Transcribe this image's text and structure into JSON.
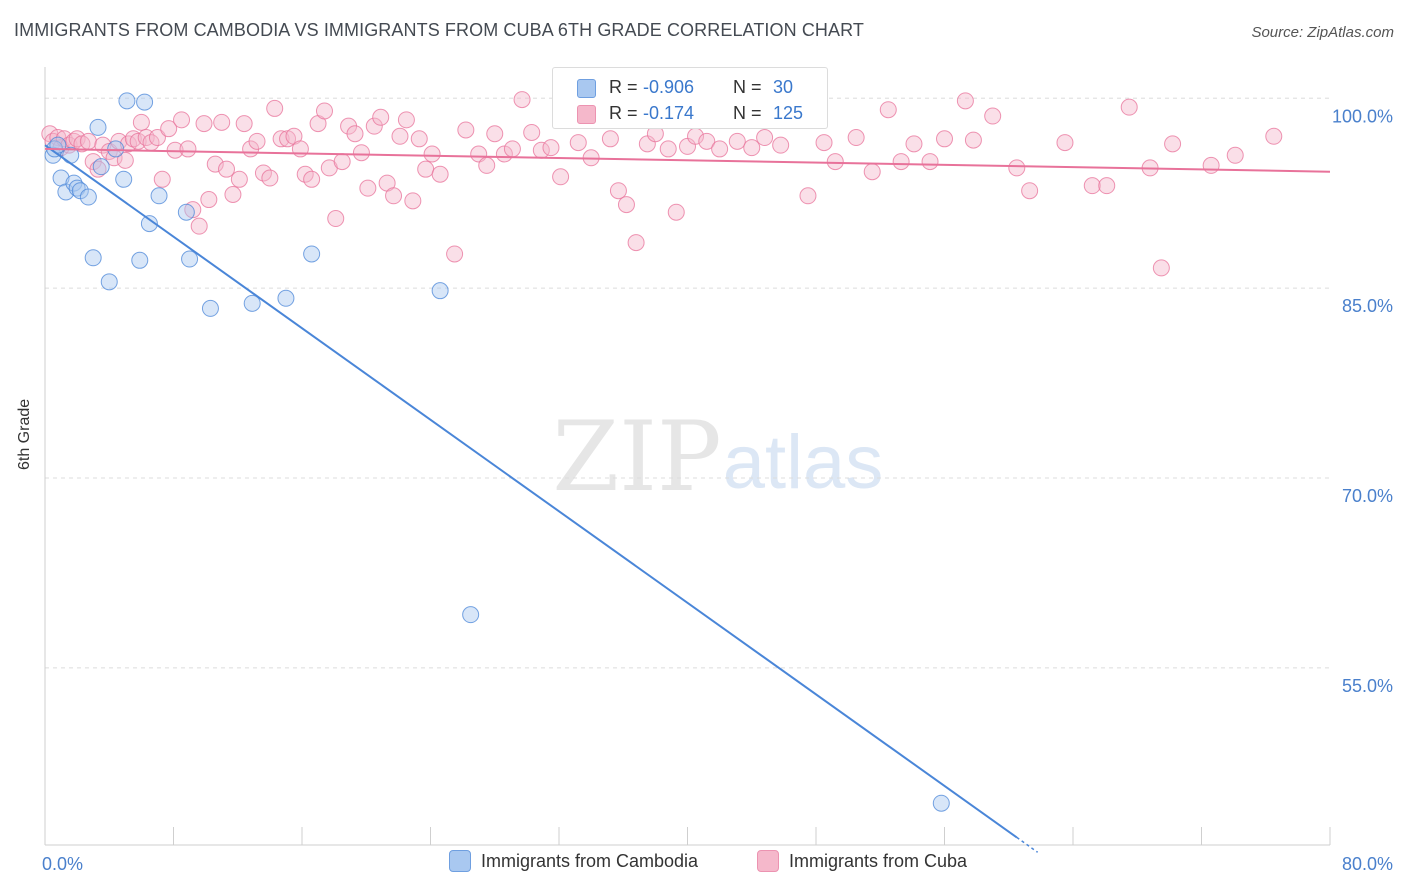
{
  "header": {
    "title": "IMMIGRANTS FROM CAMBODIA VS IMMIGRANTS FROM CUBA 6TH GRADE CORRELATION CHART",
    "source": "Source: ZipAtlas.com"
  },
  "watermark": {
    "zip": "ZIP",
    "atlas": "atlas"
  },
  "stats": [
    {
      "r_label": "R =",
      "r_value": "-0.906",
      "n_label": "N =",
      "n_value": "30",
      "color": "#a9c8f0"
    },
    {
      "r_label": "R =",
      "r_value": "-0.174",
      "n_label": "N =",
      "n_value": "125",
      "color": "#f5b8cb"
    }
  ],
  "legend": [
    {
      "label": "Immigrants from Cambodia",
      "color": "#a9c8f0"
    },
    {
      "label": "Immigrants from Cuba",
      "color": "#f5b8cb"
    }
  ],
  "chart_data": {
    "type": "scatter",
    "title": "IMMIGRANTS FROM CAMBODIA VS IMMIGRANTS FROM CUBA 6TH GRADE CORRELATION CHART",
    "xlabel": "",
    "ylabel": "6th Grade",
    "xlim": [
      0,
      80
    ],
    "ylim": [
      41,
      102
    ],
    "x_tick_labels": [
      {
        "value": 0,
        "label": "0.0%"
      },
      {
        "value": 80,
        "label": "80.0%"
      }
    ],
    "y_tick_labels": [
      {
        "value": 100,
        "label": "100.0%"
      },
      {
        "value": 85,
        "label": "85.0%"
      },
      {
        "value": 70,
        "label": "70.0%"
      },
      {
        "value": 55,
        "label": "55.0%"
      }
    ],
    "grid": "horizontal dashed",
    "legend_position": "bottom",
    "series": [
      {
        "name": "Immigrants from Cambodia",
        "color": "#4a86d8",
        "fill": "#a9c8f0",
        "points": [
          [
            0.5,
            95.5
          ],
          [
            0.6,
            96.0
          ],
          [
            0.8,
            96.3
          ],
          [
            1.0,
            93.7
          ],
          [
            1.3,
            92.6
          ],
          [
            1.6,
            95.5
          ],
          [
            1.8,
            93.3
          ],
          [
            2.0,
            92.9
          ],
          [
            2.2,
            92.7
          ],
          [
            2.7,
            92.2
          ],
          [
            3.0,
            87.4
          ],
          [
            3.3,
            97.7
          ],
          [
            3.5,
            94.6
          ],
          [
            4.0,
            85.5
          ],
          [
            4.4,
            96.0
          ],
          [
            4.9,
            93.6
          ],
          [
            5.1,
            99.8
          ],
          [
            5.9,
            87.2
          ],
          [
            6.2,
            99.7
          ],
          [
            6.5,
            90.1
          ],
          [
            7.1,
            92.3
          ],
          [
            8.8,
            91.0
          ],
          [
            9.0,
            87.3
          ],
          [
            10.3,
            83.4
          ],
          [
            12.9,
            83.8
          ],
          [
            15.0,
            84.2
          ],
          [
            16.6,
            87.7
          ],
          [
            24.6,
            84.8
          ],
          [
            26.5,
            59.2
          ],
          [
            55.8,
            44.3
          ]
        ],
        "trend": [
          [
            0.0,
            96.3
          ],
          [
            60.5,
            41.6
          ]
        ]
      },
      {
        "name": "Immigrants from Cuba",
        "color": "#e8729a",
        "fill": "#f5b8cb",
        "points": [
          [
            0.3,
            97.2
          ],
          [
            0.5,
            96.6
          ],
          [
            0.8,
            96.9
          ],
          [
            1.0,
            96.1
          ],
          [
            1.2,
            96.8
          ],
          [
            1.5,
            96.3
          ],
          [
            1.8,
            96.6
          ],
          [
            2.0,
            96.8
          ],
          [
            2.3,
            96.4
          ],
          [
            2.7,
            96.6
          ],
          [
            3.0,
            95.0
          ],
          [
            3.3,
            94.4
          ],
          [
            3.6,
            96.3
          ],
          [
            4.0,
            95.8
          ],
          [
            4.3,
            95.3
          ],
          [
            4.6,
            96.6
          ],
          [
            5.0,
            95.1
          ],
          [
            5.2,
            96.4
          ],
          [
            5.5,
            96.8
          ],
          [
            5.8,
            96.6
          ],
          [
            6.0,
            98.1
          ],
          [
            6.3,
            96.9
          ],
          [
            6.6,
            96.5
          ],
          [
            7.0,
            96.9
          ],
          [
            7.3,
            93.6
          ],
          [
            7.7,
            97.6
          ],
          [
            8.1,
            95.9
          ],
          [
            8.5,
            98.3
          ],
          [
            8.9,
            96.0
          ],
          [
            9.2,
            91.2
          ],
          [
            9.6,
            89.9
          ],
          [
            9.9,
            98.0
          ],
          [
            10.2,
            92.0
          ],
          [
            10.6,
            94.8
          ],
          [
            11.0,
            98.1
          ],
          [
            11.3,
            94.4
          ],
          [
            11.7,
            92.4
          ],
          [
            12.1,
            93.6
          ],
          [
            12.4,
            98.0
          ],
          [
            12.8,
            96.0
          ],
          [
            13.2,
            96.6
          ],
          [
            13.6,
            94.1
          ],
          [
            14.0,
            93.7
          ],
          [
            14.3,
            99.2
          ],
          [
            14.7,
            96.8
          ],
          [
            15.1,
            96.8
          ],
          [
            15.5,
            97.0
          ],
          [
            15.9,
            96.0
          ],
          [
            16.2,
            94.0
          ],
          [
            16.6,
            93.6
          ],
          [
            17.0,
            98.0
          ],
          [
            17.4,
            99.0
          ],
          [
            17.7,
            94.5
          ],
          [
            18.1,
            90.5
          ],
          [
            18.5,
            95.0
          ],
          [
            18.9,
            97.8
          ],
          [
            19.3,
            97.2
          ],
          [
            19.7,
            95.7
          ],
          [
            20.1,
            92.9
          ],
          [
            20.5,
            97.8
          ],
          [
            20.9,
            98.5
          ],
          [
            21.3,
            93.3
          ],
          [
            21.7,
            92.3
          ],
          [
            22.1,
            97.0
          ],
          [
            22.5,
            98.3
          ],
          [
            22.9,
            91.9
          ],
          [
            23.3,
            96.8
          ],
          [
            23.7,
            94.4
          ],
          [
            24.1,
            95.6
          ],
          [
            24.6,
            94.0
          ],
          [
            25.5,
            87.7
          ],
          [
            26.2,
            97.5
          ],
          [
            27.0,
            95.6
          ],
          [
            27.5,
            94.7
          ],
          [
            28.0,
            97.2
          ],
          [
            28.6,
            95.6
          ],
          [
            29.1,
            96.0
          ],
          [
            29.7,
            99.9
          ],
          [
            30.3,
            97.3
          ],
          [
            30.9,
            95.9
          ],
          [
            31.5,
            96.1
          ],
          [
            32.1,
            93.8
          ],
          [
            33.2,
            96.5
          ],
          [
            34.0,
            95.3
          ],
          [
            35.2,
            96.8
          ],
          [
            35.7,
            92.7
          ],
          [
            36.2,
            91.6
          ],
          [
            36.8,
            88.6
          ],
          [
            37.5,
            96.4
          ],
          [
            38.0,
            97.2
          ],
          [
            38.8,
            96.0
          ],
          [
            39.3,
            91.0
          ],
          [
            40.0,
            96.2
          ],
          [
            40.5,
            97.0
          ],
          [
            41.2,
            96.6
          ],
          [
            42.0,
            96.0
          ],
          [
            43.1,
            96.6
          ],
          [
            44.0,
            96.1
          ],
          [
            44.8,
            96.9
          ],
          [
            45.8,
            96.3
          ],
          [
            47.5,
            92.3
          ],
          [
            48.5,
            96.5
          ],
          [
            49.2,
            95.0
          ],
          [
            50.5,
            96.9
          ],
          [
            51.5,
            94.2
          ],
          [
            52.5,
            99.1
          ],
          [
            53.3,
            95.0
          ],
          [
            54.1,
            96.4
          ],
          [
            55.1,
            95.0
          ],
          [
            56.0,
            96.8
          ],
          [
            57.3,
            99.8
          ],
          [
            57.8,
            96.7
          ],
          [
            59.0,
            98.6
          ],
          [
            60.5,
            94.5
          ],
          [
            61.3,
            92.7
          ],
          [
            63.5,
            96.5
          ],
          [
            65.2,
            93.1
          ],
          [
            66.1,
            93.1
          ],
          [
            67.5,
            99.3
          ],
          [
            68.8,
            94.5
          ],
          [
            69.5,
            86.6
          ],
          [
            70.2,
            96.4
          ],
          [
            72.6,
            94.7
          ],
          [
            74.1,
            95.5
          ],
          [
            76.5,
            97.0
          ]
        ],
        "trend": [
          [
            0.0,
            96.0
          ],
          [
            80.0,
            94.2
          ]
        ]
      }
    ]
  }
}
